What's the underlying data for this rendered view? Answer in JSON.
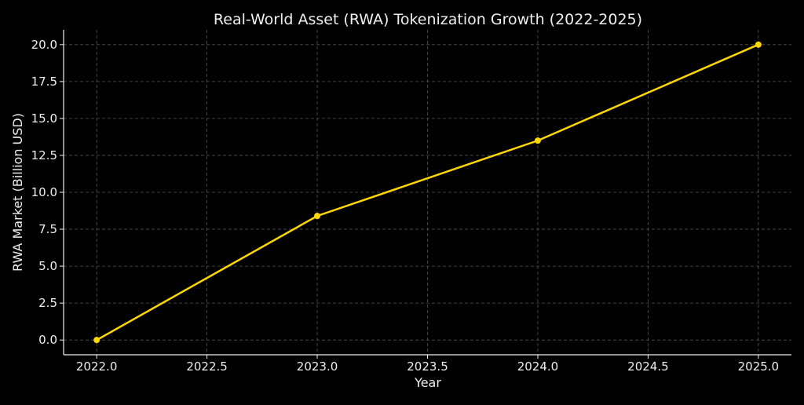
{
  "chart_data": {
    "type": "line",
    "title": "Real-World Asset (RWA) Tokenization Growth (2022-2025)",
    "xlabel": "Year",
    "ylabel": "RWA Market (Billion USD)",
    "x": [
      2022,
      2023,
      2024,
      2025
    ],
    "series": [
      {
        "name": "RWA Market",
        "values": [
          0,
          8.4,
          13.5,
          20.0
        ],
        "color": "#FFD700"
      }
    ],
    "xlim": [
      2021.85,
      2025.15
    ],
    "ylim": [
      -1,
      21
    ],
    "xticks": [
      2022.0,
      2022.5,
      2023.0,
      2023.5,
      2024.0,
      2024.5,
      2025.0
    ],
    "xtick_labels": [
      "2022.0",
      "2022.5",
      "2023.0",
      "2023.5",
      "2024.0",
      "2024.5",
      "2025.0"
    ],
    "yticks": [
      0,
      2.5,
      5,
      7.5,
      10,
      12.5,
      15,
      17.5,
      20
    ],
    "ytick_labels": [
      "0.0",
      "2.5",
      "5.0",
      "7.5",
      "10.0",
      "12.5",
      "15.0",
      "17.5",
      "20.0"
    ],
    "grid": true,
    "background": "#000000"
  }
}
